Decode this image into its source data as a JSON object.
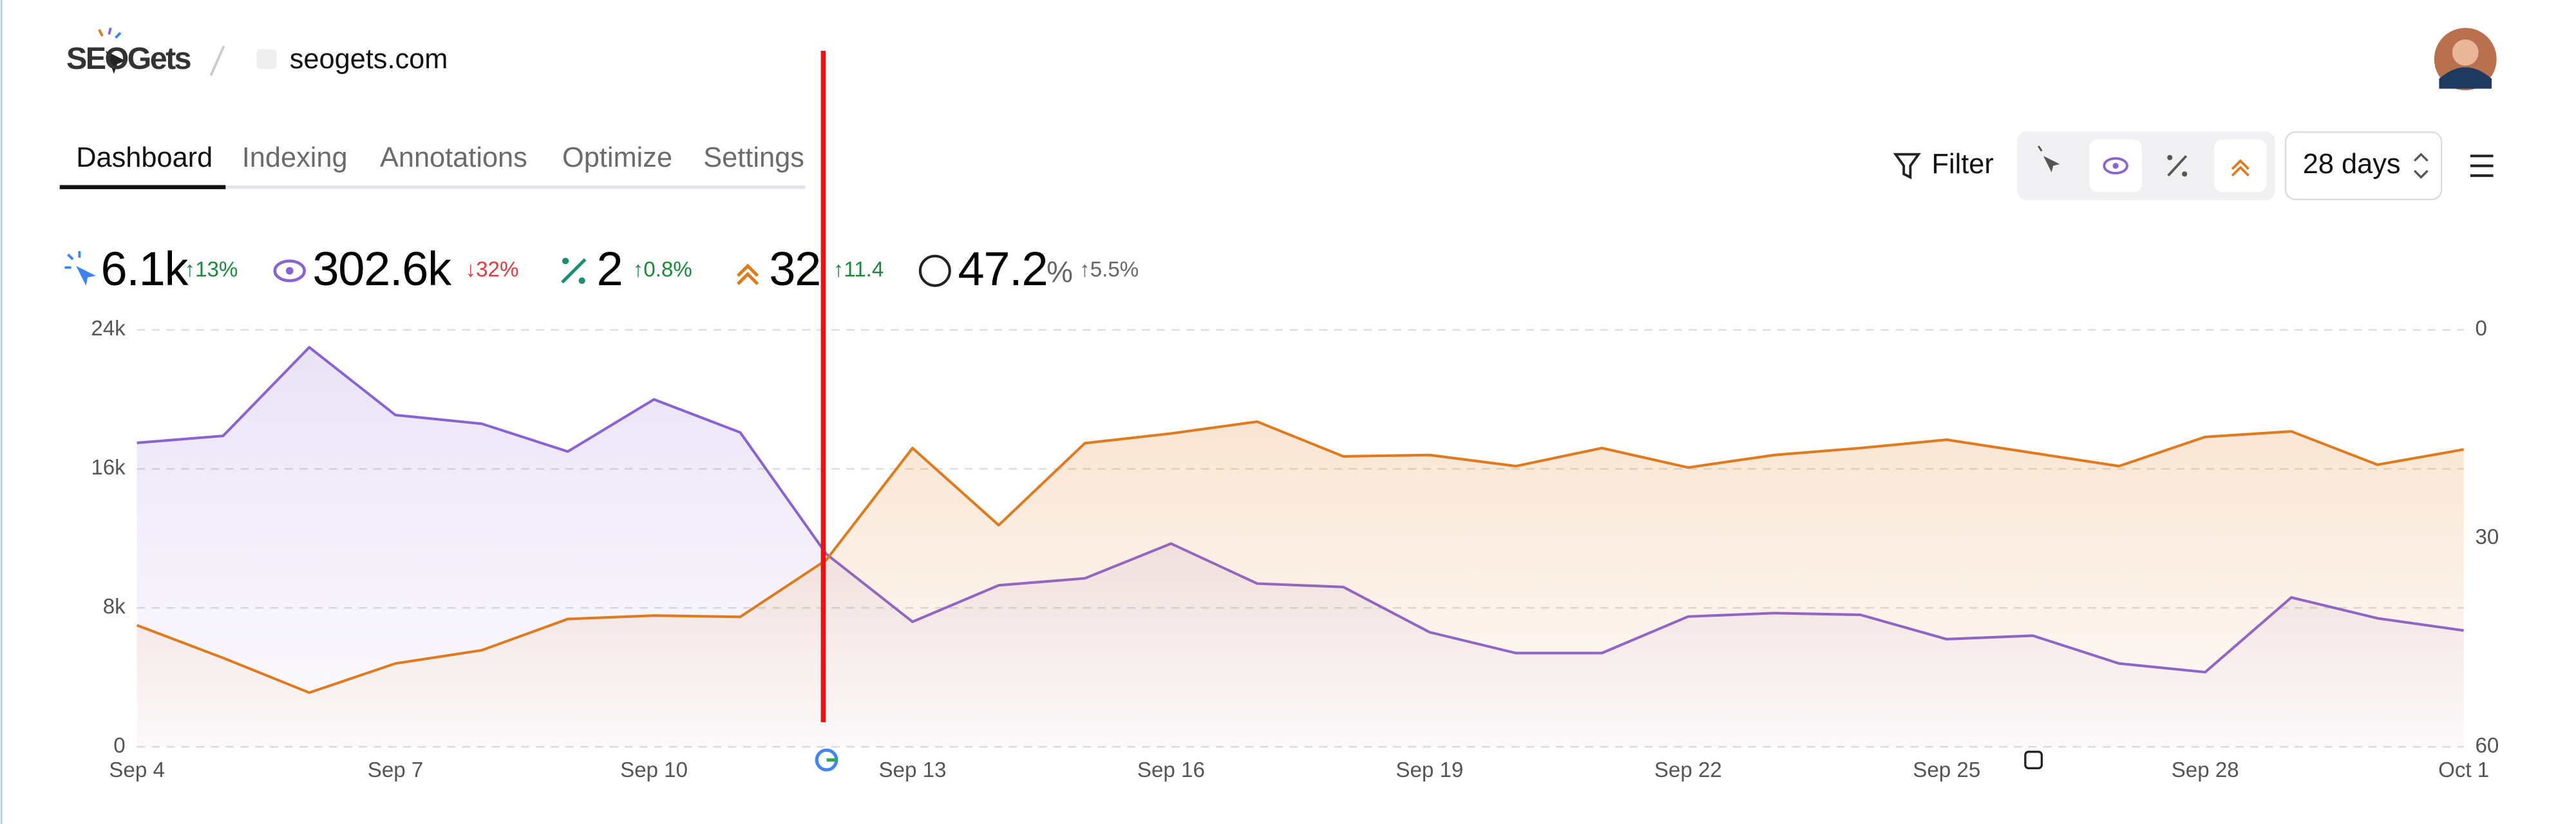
{
  "header": {
    "logo": "SEOGets",
    "site": "seogets.com"
  },
  "tabs": [
    "Dashboard",
    "Indexing",
    "Annotations",
    "Optimize",
    "Settings"
  ],
  "toolbar": {
    "filter": "Filter",
    "range": "28 days"
  },
  "metrics": [
    {
      "value": "6.1k",
      "change": "↑13%"
    },
    {
      "value": "302.6k",
      "change": "↓32%"
    },
    {
      "value": "2",
      "change": "↑0.8%"
    },
    {
      "value": "32",
      "change": "↑11.4"
    },
    {
      "value": "47.2",
      "unit": "%",
      "change": "↑5.5%"
    }
  ],
  "chart_data": {
    "type": "line",
    "categories": [
      "Sep 4",
      null,
      null,
      "Sep 7",
      null,
      null,
      "Sep 10",
      null,
      null,
      "Sep 13",
      null,
      null,
      "Sep 16",
      null,
      null,
      "Sep 19",
      null,
      null,
      "Sep 22",
      null,
      null,
      "Sep 25",
      null,
      null,
      "Sep 28",
      null,
      null,
      "Oct 1"
    ],
    "series": [
      {
        "color": "#8a63d2",
        "values": [
          17500,
          17900,
          23000,
          19100,
          18600,
          17000,
          20000,
          18100,
          11100,
          7200,
          9300,
          9700,
          11700,
          9400,
          9200,
          6600,
          5400,
          5400,
          7500,
          7700,
          7600,
          6200,
          6400,
          4800,
          4300,
          8600,
          7400,
          6700
        ]
      },
      {
        "color": "#e07a1f",
        "axis": "y2",
        "values": [
          42.5,
          47.2,
          52.2,
          48.0,
          46.1,
          41.6,
          41.1,
          41.3,
          33.1,
          17.0,
          28.1,
          16.3,
          14.9,
          13.2,
          18.2,
          18.0,
          19.6,
          17.0,
          19.8,
          18.0,
          17.0,
          15.8,
          17.7,
          19.6,
          15.4,
          14.6,
          19.4,
          17.2
        ]
      }
    ],
    "ylim": [
      0,
      24000
    ],
    "yticks": [
      0,
      {
        "value": 8000,
        "label": "8k"
      },
      {
        "value": 16000,
        "label": "16k"
      },
      {
        "value": 24000,
        "label": "24k"
      }
    ],
    "y2lim": [
      60,
      0
    ],
    "y2ticks": [
      0,
      30,
      60
    ],
    "grid": true
  }
}
